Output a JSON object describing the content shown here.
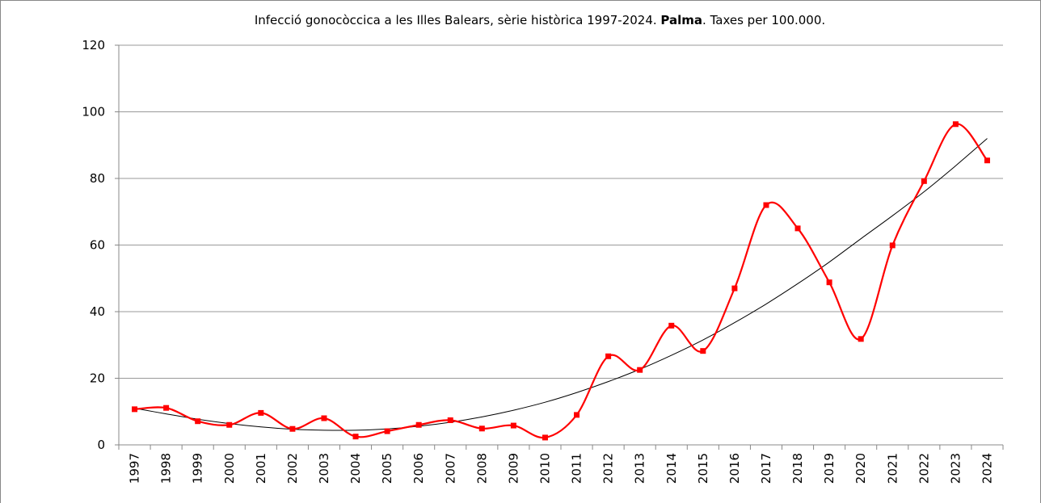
{
  "chart_data": {
    "type": "line",
    "title": [
      "Infecció gonocòccica a les Illes Balears, sèrie històrica 1997-2024. ",
      "Palma",
      ". Taxes per 100.000."
    ],
    "categories": [
      "1997",
      "1998",
      "1999",
      "2000",
      "2001",
      "2002",
      "2003",
      "2004",
      "2005",
      "2006",
      "2007",
      "2008",
      "2009",
      "2010",
      "2011",
      "2012",
      "2013",
      "2014",
      "2015",
      "2016",
      "2017",
      "2018",
      "2019",
      "2020",
      "2021",
      "2022",
      "2023",
      "2024"
    ],
    "series": [
      {
        "color": "#ff0000",
        "values": [
          10.7,
          11.1,
          7.1,
          6.0,
          9.6,
          4.8,
          8.0,
          2.5,
          4.1,
          6.0,
          7.4,
          4.9,
          5.8,
          2.2,
          9.0,
          26.6,
          22.5,
          35.8,
          28.2,
          47.0,
          72.0,
          65.0,
          48.8,
          31.8,
          59.9,
          79.2,
          96.3,
          85.4
        ]
      },
      {
        "color": "#000000",
        "values": [
          11.0,
          9.3,
          7.7,
          6.4,
          5.4,
          4.7,
          4.4,
          4.4,
          4.8,
          5.6,
          6.8,
          8.4,
          10.4,
          12.8,
          15.7,
          19.0,
          22.7,
          26.9,
          31.5,
          36.7,
          42.3,
          48.4,
          54.9,
          61.9,
          68.8,
          76.0,
          83.8,
          92.0
        ]
      }
    ],
    "ylim": [
      0,
      120
    ],
    "yticks": [
      0,
      20,
      40,
      60,
      80,
      100,
      120
    ],
    "grid": true
  }
}
